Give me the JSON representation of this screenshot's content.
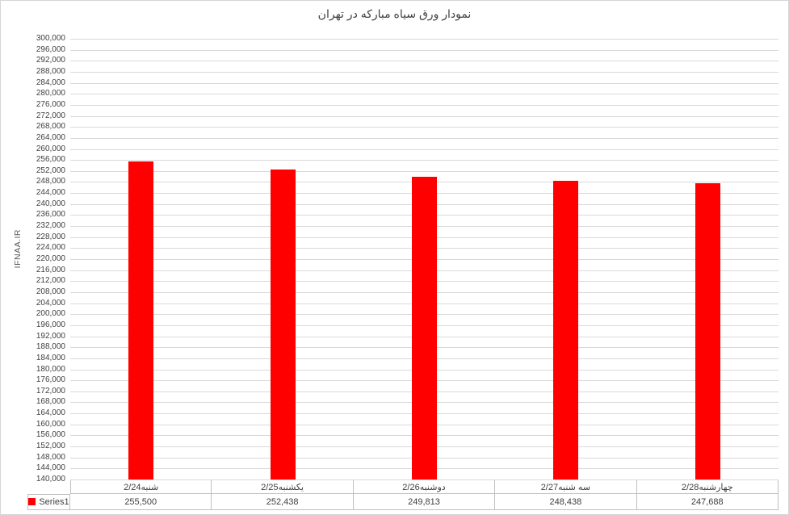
{
  "window": {
    "background": "#ffffff",
    "border_color": "#d5d5d5"
  },
  "chart_data": {
    "type": "bar",
    "title": "نمودار ورق سیاه مبارکه در تهران",
    "xlabel": "",
    "ylabel": "IFNAA.IR",
    "categories": [
      "شنبه2/24",
      "یکشنبه2/25",
      "دوشنبه2/26",
      "سه شنبه2/27",
      "چهارشنبه2/28"
    ],
    "series": [
      {
        "name": "Series1",
        "color": "#ff0000",
        "values": [
          255500,
          252438,
          249813,
          248438,
          247688
        ],
        "value_labels": [
          "255,500",
          "252,438",
          "249,813",
          "248,438",
          "247,688"
        ]
      }
    ],
    "ylim": [
      140000,
      300000
    ],
    "ytick_step": 4000,
    "grid": true,
    "legend_position": "data-table-left",
    "colors": {
      "bar": "#ff0000",
      "gridline": "#d9d9d9",
      "tick_label": "#404040",
      "title": "#404040",
      "axis_title": "#595959",
      "table_border": "#bfbfbf",
      "table_text": "#404040"
    }
  }
}
